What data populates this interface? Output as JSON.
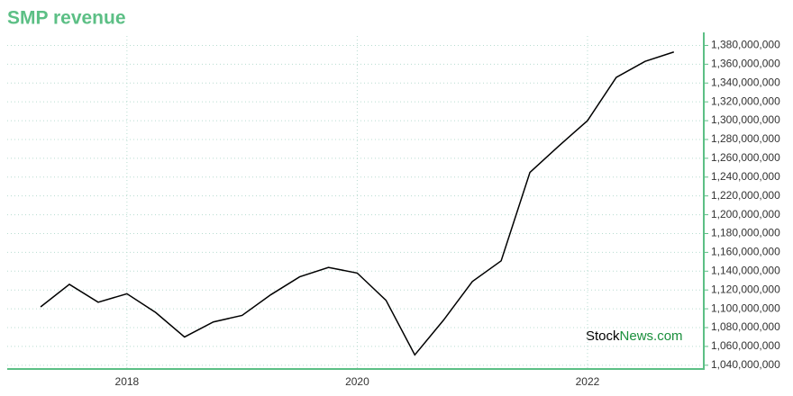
{
  "chart_data": {
    "type": "line",
    "title": "SMP revenue",
    "x": [
      2017.25,
      2017.5,
      2017.75,
      2018,
      2018.25,
      2018.5,
      2018.75,
      2019,
      2019.25,
      2019.5,
      2019.75,
      2020,
      2020.25,
      2020.5,
      2020.75,
      2021,
      2021.25,
      2021.5,
      2021.75,
      2022,
      2022.25,
      2022.5,
      2022.75
    ],
    "series": [
      {
        "name": "SMP revenue",
        "color": "#000000",
        "values": [
          1102000000,
          1126000000,
          1107000000,
          1116000000,
          1096000000,
          1070000000,
          1086000000,
          1093000000,
          1115000000,
          1134000000,
          1144000000,
          1138000000,
          1109000000,
          1051000000,
          1088000000,
          1129000000,
          1151000000,
          1245000000,
          1273000000,
          1300000000,
          1346000000,
          1363000000,
          1373000000
        ]
      }
    ],
    "xlim": [
      2016.96,
      2023.01
    ],
    "xticks": [
      2018,
      2020,
      2022
    ],
    "ylim": [
      1036000000,
      1390000000
    ],
    "yticks": [
      {
        "value": 1040000000,
        "label": "1,040,000,000"
      },
      {
        "value": 1060000000,
        "label": "1,060,000,000"
      },
      {
        "value": 1080000000,
        "label": "1,080,000,000"
      },
      {
        "value": 1100000000,
        "label": "1,100,000,000"
      },
      {
        "value": 1120000000,
        "label": "1,120,000,000"
      },
      {
        "value": 1140000000,
        "label": "1,140,000,000"
      },
      {
        "value": 1160000000,
        "label": "1,160,000,000"
      },
      {
        "value": 1180000000,
        "label": "1,180,000,000"
      },
      {
        "value": 1200000000,
        "label": "1,200,000,000"
      },
      {
        "value": 1220000000,
        "label": "1,220,000,000"
      },
      {
        "value": 1240000000,
        "label": "1,240,000,000"
      },
      {
        "value": 1260000000,
        "label": "1,260,000,000"
      },
      {
        "value": 1280000000,
        "label": "1,280,000,000"
      },
      {
        "value": 1300000000,
        "label": "1,300,000,000"
      },
      {
        "value": 1320000000,
        "label": "1,320,000,000"
      },
      {
        "value": 1340000000,
        "label": "1,340,000,000"
      },
      {
        "value": 1360000000,
        "label": "1,360,000,000"
      },
      {
        "value": 1380000000,
        "label": "1,380,000,000"
      }
    ],
    "grid": true,
    "axis_color": "#5cbf85",
    "watermark": [
      "Stock",
      "News",
      ".com"
    ]
  }
}
